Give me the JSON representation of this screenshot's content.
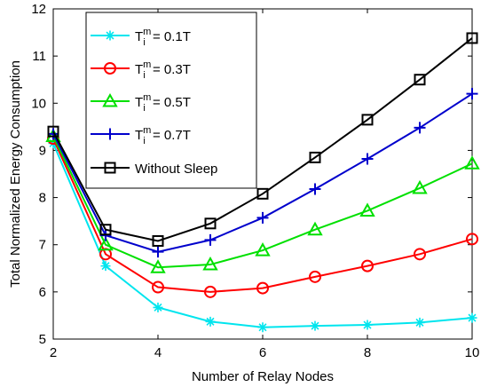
{
  "chart_data": {
    "type": "line",
    "title": "",
    "xlabel": "Number of Relay Nodes",
    "ylabel": "Total Normalized Energy Consumption",
    "xlim": [
      2,
      10
    ],
    "ylim": [
      5,
      12
    ],
    "xticks": [
      2,
      4,
      6,
      8,
      10
    ],
    "yticks": [
      5,
      6,
      7,
      8,
      9,
      10,
      11,
      12
    ],
    "grid": false,
    "legend_position": "top-left",
    "x": [
      2,
      3,
      4,
      5,
      6,
      7,
      8,
      9,
      10
    ],
    "series": [
      {
        "name": "0.1T",
        "color": "#00e5ee",
        "marker": "asterisk",
        "values": [
          9.15,
          6.55,
          5.67,
          5.37,
          5.25,
          5.28,
          5.3,
          5.35,
          5.45
        ]
      },
      {
        "name": "0.3T",
        "color": "#ff0000",
        "marker": "circle",
        "values": [
          9.25,
          6.8,
          6.1,
          6.0,
          6.08,
          6.32,
          6.55,
          6.8,
          7.12
        ]
      },
      {
        "name": "0.5T",
        "color": "#00e000",
        "marker": "triangle",
        "values": [
          9.3,
          7.0,
          6.52,
          6.58,
          6.88,
          7.32,
          7.72,
          8.2,
          8.72
        ]
      },
      {
        "name": "0.7T",
        "color": "#0000cc",
        "marker": "plus",
        "values": [
          9.35,
          7.2,
          6.85,
          7.1,
          7.57,
          8.18,
          8.82,
          9.48,
          10.2
        ]
      },
      {
        "name": "Without Sleep",
        "color": "#000000",
        "marker": "square",
        "values": [
          9.4,
          7.32,
          7.08,
          7.45,
          8.08,
          8.85,
          9.65,
          10.5,
          11.38
        ]
      }
    ],
    "legend_prefix": {
      "main": "T",
      "sup": "m",
      "sub": "i",
      "eq": " = "
    }
  }
}
